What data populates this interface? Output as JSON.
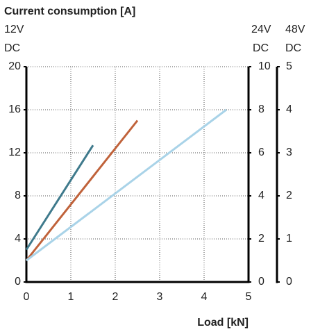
{
  "chart_data": {
    "type": "line",
    "title": "Current consumption [A]",
    "ylabel": [
      "12V",
      "DC"
    ],
    "y2label": [
      "24V",
      "DC"
    ],
    "y3label": [
      "48V",
      "DC"
    ],
    "xlabel": "Load [kN]",
    "xlim": [
      0,
      5
    ],
    "xticks": [
      0,
      1,
      2,
      3,
      4,
      5
    ],
    "ylim": [
      0,
      20
    ],
    "yticks": [
      0,
      4,
      8,
      12,
      16,
      20
    ],
    "y2lim": [
      0,
      10
    ],
    "y2ticks": [
      0,
      2,
      4,
      6,
      8,
      10
    ],
    "y3lim": [
      0,
      5
    ],
    "y3ticks": [
      0,
      1,
      2,
      3,
      4,
      5
    ],
    "grid": true,
    "series": [
      {
        "color": "#3f7a8c",
        "x": [
          0,
          1.5
        ],
        "values": [
          3,
          12.7
        ]
      },
      {
        "color": "#c0623a",
        "x": [
          0,
          2.5
        ],
        "values": [
          2,
          15
        ]
      },
      {
        "color": "#a9d3e8",
        "x": [
          0,
          4.5
        ],
        "values": [
          2,
          16
        ]
      }
    ]
  }
}
